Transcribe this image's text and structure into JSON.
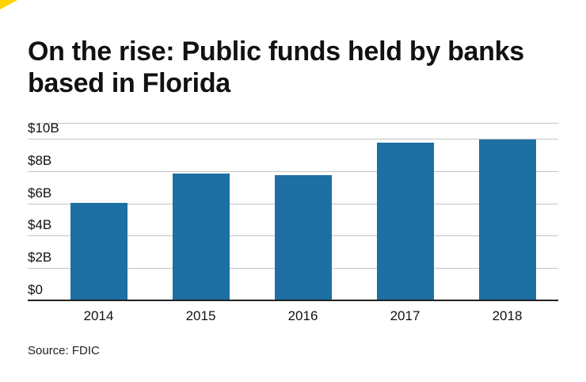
{
  "brand": {
    "accent_color": "#ffd200"
  },
  "title": "On the rise: Public funds held by banks based in Florida",
  "source": "Source: FDIC",
  "chart_data": {
    "type": "bar",
    "title": "On the rise: Public funds held by banks based in Florida",
    "categories": [
      "2014",
      "2015",
      "2016",
      "2017",
      "2018"
    ],
    "values": [
      6.1,
      7.9,
      7.8,
      9.8,
      10
    ],
    "unit": "billions USD",
    "xlabel": "",
    "ylabel": "",
    "ylim": [
      0,
      10
    ],
    "yticks": [
      0,
      2,
      4,
      6,
      8,
      10
    ],
    "ytick_labels": [
      "$0",
      "$2B",
      "$4B",
      "$6B",
      "$8B",
      "$10B"
    ],
    "grid": true,
    "legend": "none",
    "bar_color": "#1d6fa4",
    "gridline_color": "#c4c4c4",
    "axis_color": "#222222"
  }
}
